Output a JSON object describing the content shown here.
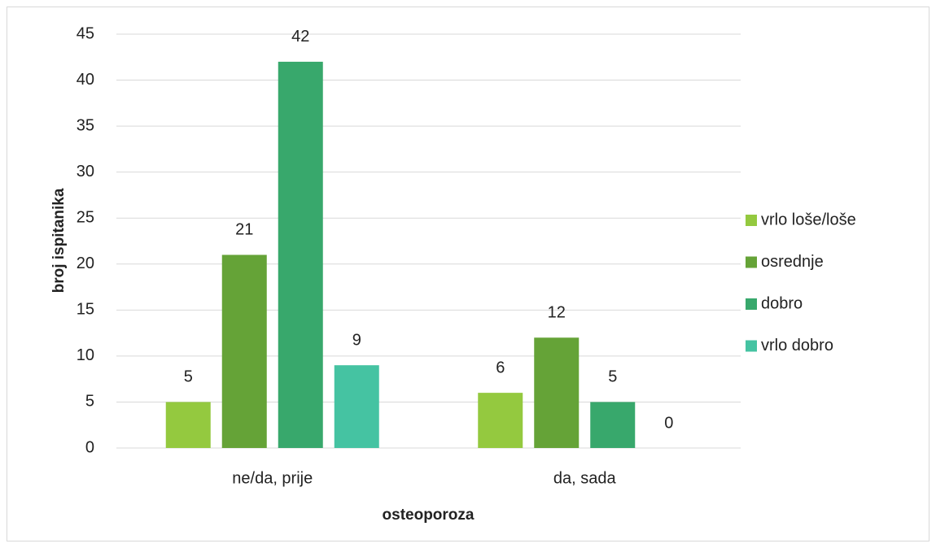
{
  "chart_data": {
    "type": "bar",
    "x_label": "osteoporoza",
    "y_label": "broj ispitanika",
    "categories": [
      "ne/da, prije",
      "da, sada"
    ],
    "series": [
      {
        "name": "vrlo loše/loše",
        "color": "#94c93f",
        "values": [
          5,
          6
        ]
      },
      {
        "name": "osrednje",
        "color": "#65a337",
        "values": [
          21,
          12
        ]
      },
      {
        "name": "dobro",
        "color": "#38a86c",
        "values": [
          42,
          5
        ]
      },
      {
        "name": "vrlo dobro",
        "color": "#45c3a2",
        "values": [
          9,
          0
        ]
      }
    ],
    "ylim": [
      0,
      45
    ],
    "yticks": [
      0,
      5,
      10,
      15,
      20,
      25,
      30,
      35,
      40,
      45
    ],
    "grid": true,
    "legend": "right"
  }
}
